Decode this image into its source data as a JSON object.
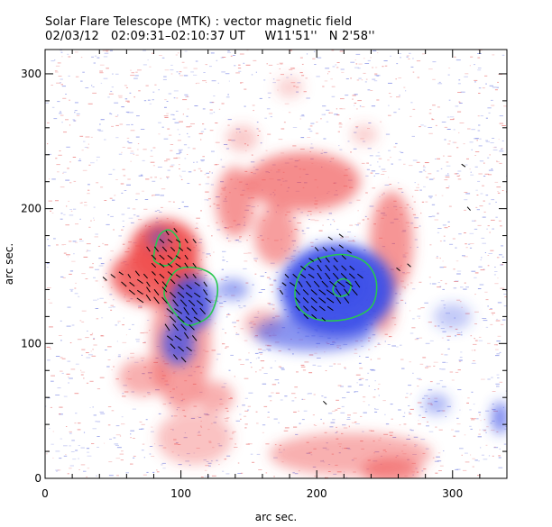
{
  "chart_data": {
    "type": "heatmap",
    "title": "Solar Flare Telescope (MTK) : vector magnetic field",
    "subtitle": "02/03/12   02:09:31–02:10:37 UT     W11'51''   N 2'58''",
    "xlabel": "arc sec.",
    "ylabel": "arc sec.",
    "xlim": [
      0,
      340
    ],
    "ylim": [
      0,
      318
    ],
    "x_ticks": [
      0,
      100,
      200,
      300
    ],
    "y_ticks": [
      0,
      100,
      200,
      300
    ],
    "colors": {
      "positive": "#f05050",
      "negative": "#3a4ee8",
      "contour": "#28c850",
      "vector": "#000000",
      "frame": "#000000"
    },
    "positive_regions": [
      {
        "x": 88,
        "y": 168,
        "rx": 26,
        "ry": 24,
        "strength": 0.95
      },
      {
        "x": 82,
        "y": 150,
        "rx": 34,
        "ry": 22,
        "strength": 0.85
      },
      {
        "x": 100,
        "y": 100,
        "rx": 22,
        "ry": 50,
        "strength": 0.55
      },
      {
        "x": 72,
        "y": 75,
        "rx": 18,
        "ry": 14,
        "strength": 0.45
      },
      {
        "x": 125,
        "y": 60,
        "rx": 14,
        "ry": 12,
        "strength": 0.45
      },
      {
        "x": 140,
        "y": 205,
        "rx": 14,
        "ry": 26,
        "strength": 0.6
      },
      {
        "x": 190,
        "y": 220,
        "rx": 42,
        "ry": 22,
        "strength": 0.65
      },
      {
        "x": 170,
        "y": 180,
        "rx": 16,
        "ry": 22,
        "strength": 0.55
      },
      {
        "x": 255,
        "y": 175,
        "rx": 16,
        "ry": 38,
        "strength": 0.6
      },
      {
        "x": 248,
        "y": 125,
        "rx": 10,
        "ry": 18,
        "strength": 0.5
      },
      {
        "x": 160,
        "y": 115,
        "rx": 14,
        "ry": 10,
        "strength": 0.4
      },
      {
        "x": 225,
        "y": 18,
        "rx": 60,
        "ry": 16,
        "strength": 0.45
      },
      {
        "x": 255,
        "y": 5,
        "rx": 22,
        "ry": 10,
        "strength": 0.6
      },
      {
        "x": 110,
        "y": 30,
        "rx": 28,
        "ry": 20,
        "strength": 0.35
      },
      {
        "x": 145,
        "y": 252,
        "rx": 12,
        "ry": 10,
        "strength": 0.3
      },
      {
        "x": 180,
        "y": 290,
        "rx": 10,
        "ry": 8,
        "strength": 0.25
      },
      {
        "x": 235,
        "y": 255,
        "rx": 10,
        "ry": 8,
        "strength": 0.25
      }
    ],
    "negative_regions": [
      {
        "x": 215,
        "y": 140,
        "rx": 42,
        "ry": 34,
        "strength": 0.95
      },
      {
        "x": 218,
        "y": 142,
        "rx": 18,
        "ry": 14,
        "strength": 1.0
      },
      {
        "x": 198,
        "y": 108,
        "rx": 44,
        "ry": 14,
        "strength": 0.6
      },
      {
        "x": 108,
        "y": 130,
        "rx": 16,
        "ry": 20,
        "strength": 0.85
      },
      {
        "x": 98,
        "y": 100,
        "rx": 12,
        "ry": 16,
        "strength": 0.75
      },
      {
        "x": 84,
        "y": 178,
        "rx": 8,
        "ry": 8,
        "strength": 0.45
      },
      {
        "x": 138,
        "y": 140,
        "rx": 12,
        "ry": 8,
        "strength": 0.5
      },
      {
        "x": 288,
        "y": 55,
        "rx": 10,
        "ry": 8,
        "strength": 0.4
      },
      {
        "x": 335,
        "y": 45,
        "rx": 6,
        "ry": 12,
        "strength": 0.7
      },
      {
        "x": 300,
        "y": 120,
        "rx": 14,
        "ry": 10,
        "strength": 0.3
      }
    ],
    "contours": [
      {
        "name": "contour-west-upper",
        "points": [
          [
            80,
            165
          ],
          [
            84,
            180
          ],
          [
            92,
            184
          ],
          [
            99,
            175
          ],
          [
            97,
            165
          ],
          [
            90,
            158
          ],
          [
            82,
            160
          ]
        ]
      },
      {
        "name": "contour-west-lower",
        "points": [
          [
            90,
            145
          ],
          [
            98,
            155
          ],
          [
            112,
            156
          ],
          [
            124,
            150
          ],
          [
            127,
            138
          ],
          [
            122,
            122
          ],
          [
            112,
            115
          ],
          [
            104,
            114
          ],
          [
            96,
            122
          ],
          [
            88,
            135
          ]
        ]
      },
      {
        "name": "contour-east-outer",
        "points": [
          [
            185,
            145
          ],
          [
            195,
            160
          ],
          [
            218,
            166
          ],
          [
            236,
            160
          ],
          [
            244,
            145
          ],
          [
            240,
            127
          ],
          [
            222,
            118
          ],
          [
            200,
            118
          ],
          [
            186,
            128
          ]
        ]
      },
      {
        "name": "contour-east-inner",
        "points": [
          [
            214,
            145
          ],
          [
            220,
            148
          ],
          [
            225,
            144
          ],
          [
            223,
            137
          ],
          [
            216,
            135
          ],
          [
            212,
            139
          ]
        ]
      }
    ],
    "vectors": [
      [
        44,
        148,
        0.3
      ],
      [
        50,
        150,
        0.4
      ],
      [
        56,
        152,
        0.3
      ],
      [
        62,
        150,
        0.2
      ],
      [
        68,
        152,
        0.5
      ],
      [
        74,
        150,
        0.4
      ],
      [
        80,
        152,
        0.3
      ],
      [
        86,
        150,
        0.5
      ],
      [
        92,
        152,
        0.4
      ],
      [
        98,
        150,
        0.3
      ],
      [
        104,
        150,
        0.4
      ],
      [
        110,
        150,
        0.3
      ],
      [
        58,
        144,
        0.6
      ],
      [
        64,
        144,
        0.5
      ],
      [
        70,
        146,
        0.6
      ],
      [
        76,
        144,
        0.4
      ],
      [
        82,
        146,
        0.5
      ],
      [
        88,
        144,
        0.6
      ],
      [
        94,
        146,
        0.5
      ],
      [
        100,
        142,
        0.7
      ],
      [
        106,
        142,
        0.6
      ],
      [
        112,
        144,
        0.5
      ],
      [
        118,
        144,
        0.4
      ],
      [
        64,
        138,
        0.7
      ],
      [
        70,
        138,
        0.6
      ],
      [
        76,
        140,
        0.5
      ],
      [
        82,
        138,
        0.7
      ],
      [
        88,
        140,
        0.6
      ],
      [
        94,
        136,
        0.8
      ],
      [
        100,
        136,
        0.9
      ],
      [
        106,
        136,
        0.8
      ],
      [
        112,
        136,
        0.7
      ],
      [
        118,
        138,
        0.6
      ],
      [
        70,
        132,
        0.8
      ],
      [
        76,
        134,
        0.7
      ],
      [
        82,
        132,
        0.9
      ],
      [
        88,
        132,
        0.8
      ],
      [
        96,
        130,
        0.9
      ],
      [
        102,
        130,
        1.0
      ],
      [
        108,
        130,
        0.9
      ],
      [
        114,
        130,
        0.8
      ],
      [
        120,
        132,
        0.7
      ],
      [
        92,
        124,
        0.9
      ],
      [
        98,
        124,
        1.0
      ],
      [
        104,
        124,
        1.0
      ],
      [
        110,
        124,
        0.9
      ],
      [
        116,
        124,
        0.8
      ],
      [
        94,
        118,
        0.9
      ],
      [
        100,
        118,
        1.0
      ],
      [
        106,
        118,
        0.9
      ],
      [
        112,
        118,
        0.8
      ],
      [
        90,
        112,
        0.8
      ],
      [
        96,
        112,
        0.9
      ],
      [
        102,
        112,
        0.8
      ],
      [
        108,
        112,
        0.7
      ],
      [
        92,
        104,
        0.7
      ],
      [
        98,
        104,
        0.8
      ],
      [
        104,
        106,
        0.7
      ],
      [
        110,
        104,
        0.6
      ],
      [
        94,
        98,
        0.6
      ],
      [
        100,
        96,
        0.7
      ],
      [
        106,
        96,
        0.6
      ],
      [
        96,
        90,
        0.5
      ],
      [
        102,
        88,
        0.6
      ],
      [
        80,
        158,
        0.4
      ],
      [
        86,
        158,
        0.5
      ],
      [
        92,
        158,
        0.4
      ],
      [
        98,
        158,
        0.5
      ],
      [
        104,
        158,
        0.4
      ],
      [
        110,
        158,
        0.3
      ],
      [
        80,
        164,
        0.5
      ],
      [
        86,
        164,
        0.6
      ],
      [
        92,
        164,
        0.5
      ],
      [
        98,
        164,
        0.4
      ],
      [
        104,
        164,
        0.3
      ],
      [
        76,
        170,
        0.4
      ],
      [
        82,
        170,
        0.5
      ],
      [
        88,
        170,
        0.5
      ],
      [
        94,
        170,
        0.4
      ],
      [
        100,
        170,
        0.3
      ],
      [
        106,
        170,
        0.3
      ],
      [
        86,
        176,
        0.4
      ],
      [
        92,
        176,
        0.4
      ],
      [
        98,
        176,
        0.3
      ],
      [
        104,
        176,
        0.3
      ],
      [
        110,
        176,
        0.3
      ],
      [
        90,
        182,
        0.3
      ],
      [
        96,
        184,
        0.3
      ],
      [
        178,
        150,
        0.3
      ],
      [
        184,
        150,
        0.4
      ],
      [
        190,
        150,
        0.5
      ],
      [
        196,
        150,
        0.6
      ],
      [
        202,
        150,
        0.7
      ],
      [
        208,
        150,
        0.8
      ],
      [
        214,
        150,
        0.8
      ],
      [
        220,
        150,
        0.8
      ],
      [
        226,
        150,
        0.7
      ],
      [
        232,
        150,
        0.6
      ],
      [
        182,
        144,
        0.5
      ],
      [
        188,
        144,
        0.6
      ],
      [
        194,
        144,
        0.7
      ],
      [
        200,
        144,
        0.8
      ],
      [
        206,
        144,
        0.9
      ],
      [
        212,
        144,
        1.0
      ],
      [
        218,
        144,
        1.0
      ],
      [
        224,
        144,
        0.9
      ],
      [
        230,
        144,
        0.8
      ],
      [
        186,
        138,
        0.6
      ],
      [
        192,
        138,
        0.7
      ],
      [
        198,
        138,
        0.8
      ],
      [
        204,
        138,
        0.9
      ],
      [
        210,
        138,
        1.0
      ],
      [
        216,
        138,
        1.0
      ],
      [
        222,
        138,
        0.9
      ],
      [
        228,
        138,
        0.8
      ],
      [
        186,
        132,
        0.6
      ],
      [
        192,
        132,
        0.7
      ],
      [
        198,
        132,
        0.8
      ],
      [
        204,
        132,
        0.9
      ],
      [
        210,
        132,
        0.9
      ],
      [
        216,
        132,
        0.8
      ],
      [
        222,
        132,
        0.7
      ],
      [
        186,
        126,
        0.5
      ],
      [
        192,
        126,
        0.6
      ],
      [
        198,
        126,
        0.7
      ],
      [
        204,
        126,
        0.7
      ],
      [
        210,
        126,
        0.6
      ],
      [
        192,
        120,
        0.5
      ],
      [
        198,
        120,
        0.5
      ],
      [
        190,
        156,
        0.5
      ],
      [
        196,
        156,
        0.6
      ],
      [
        202,
        156,
        0.7
      ],
      [
        208,
        156,
        0.7
      ],
      [
        214,
        156,
        0.6
      ],
      [
        220,
        156,
        0.6
      ],
      [
        226,
        156,
        0.5
      ],
      [
        196,
        162,
        0.4
      ],
      [
        202,
        162,
        0.5
      ],
      [
        208,
        162,
        0.5
      ],
      [
        214,
        162,
        0.4
      ],
      [
        220,
        164,
        0.4
      ],
      [
        200,
        170,
        0.3
      ],
      [
        206,
        170,
        0.4
      ],
      [
        212,
        170,
        0.3
      ],
      [
        218,
        172,
        0.3
      ],
      [
        224,
        168,
        0.3
      ],
      [
        210,
        178,
        0.3
      ],
      [
        218,
        180,
        0.3
      ],
      [
        176,
        144,
        0.3
      ],
      [
        174,
        138,
        0.3
      ],
      [
        260,
        155,
        0.2
      ],
      [
        268,
        158,
        0.2
      ],
      [
        312,
        200,
        0.2
      ],
      [
        308,
        232,
        0.2
      ],
      [
        206,
        56,
        0.2
      ],
      [
        205,
        118,
        0.2
      ]
    ]
  }
}
